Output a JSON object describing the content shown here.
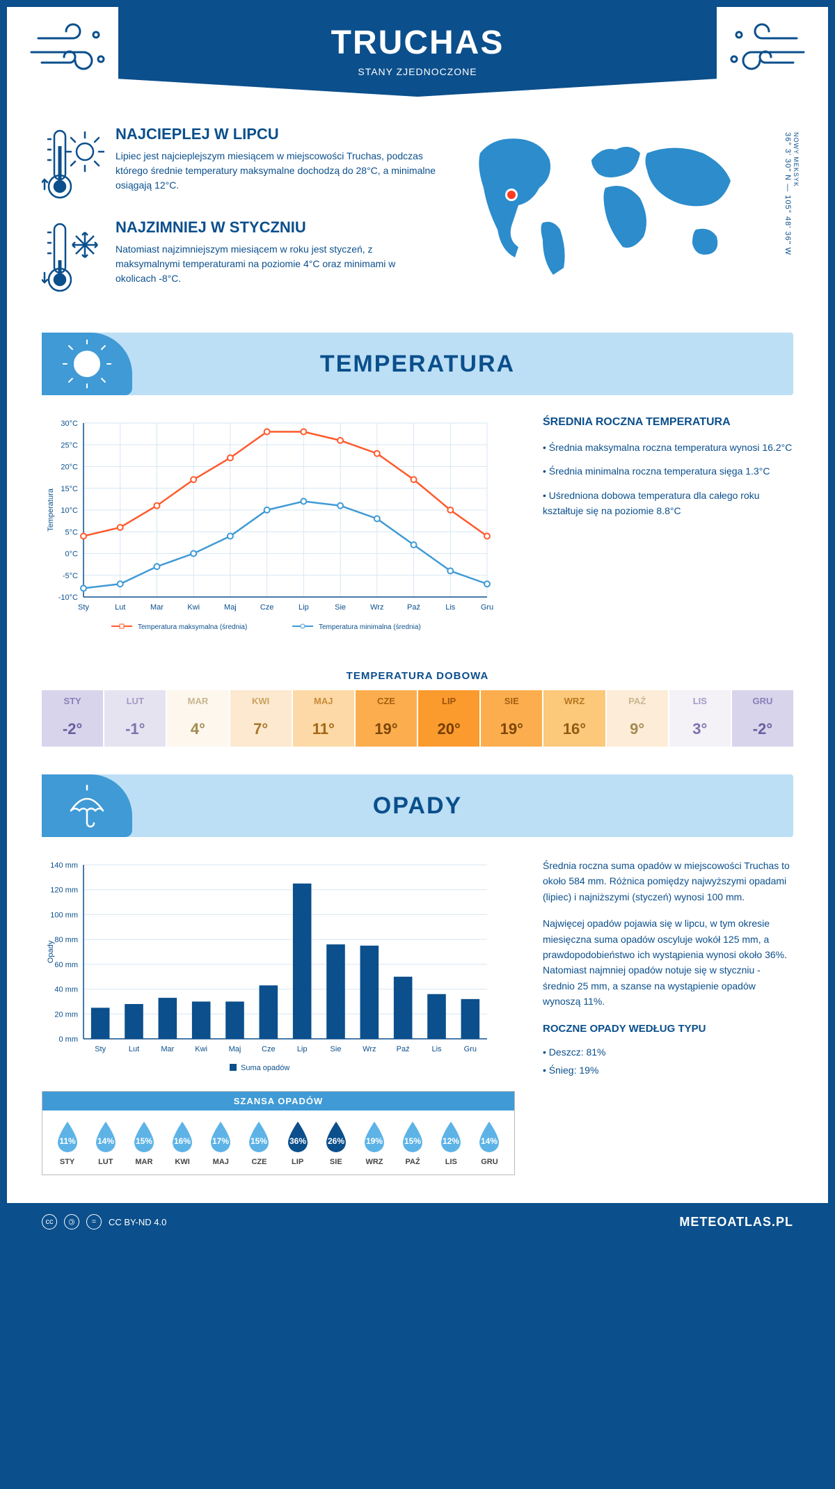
{
  "header": {
    "title": "TRUCHAS",
    "subtitle": "STANY ZJEDNOCZONE"
  },
  "coords": {
    "line": "36° 3' 30\" N — 105° 48' 36\" W",
    "region": "NOWY MEKSYK"
  },
  "intro": {
    "hot": {
      "title": "NAJCIEPLEJ W LIPCU",
      "text": "Lipiec jest najcieplejszym miesiącem w miejscowości Truchas, podczas którego średnie temperatury maksymalne dochodzą do 28°C, a minimalne osiągają 12°C."
    },
    "cold": {
      "title": "NAJZIMNIEJ W STYCZNIU",
      "text": "Natomiast najzimniejszym miesiącem w roku jest styczeń, z maksymalnymi temperaturami na poziomie 4°C oraz minimami w okolicach -8°C."
    }
  },
  "sections": {
    "temperature": "TEMPERATURA",
    "precip": "OPADY"
  },
  "months": [
    "Sty",
    "Lut",
    "Mar",
    "Kwi",
    "Maj",
    "Cze",
    "Lip",
    "Sie",
    "Wrz",
    "Paź",
    "Lis",
    "Gru"
  ],
  "months_upper": [
    "STY",
    "LUT",
    "MAR",
    "KWI",
    "MAJ",
    "CZE",
    "LIP",
    "SIE",
    "WRZ",
    "PAŹ",
    "LIS",
    "GRU"
  ],
  "temp_chart": {
    "ylabel": "Temperatura",
    "ymin": -10,
    "ymax": 30,
    "ystep": 5,
    "max_series": [
      4,
      6,
      11,
      17,
      22,
      28,
      28,
      26,
      23,
      17,
      10,
      4
    ],
    "min_series": [
      -8,
      -7,
      -3,
      0,
      4,
      10,
      12,
      11,
      8,
      2,
      -4,
      -7
    ],
    "max_color": "#ff5a2c",
    "min_color": "#3f9ad6",
    "grid_color": "#d6e7f3",
    "axis_color": "#0b4f8c",
    "legend_max": "Temperatura maksymalna (średnia)",
    "legend_min": "Temperatura minimalna (średnia)"
  },
  "temp_side": {
    "title": "ŚREDNIA ROCZNA TEMPERATURA",
    "b1": "• Średnia maksymalna roczna temperatura wynosi 16.2°C",
    "b2": "• Średnia minimalna roczna temperatura sięga 1.3°C",
    "b3": "• Uśredniona dobowa temperatura dla całego roku kształtuje się na poziomie 8.8°C"
  },
  "daily": {
    "title": "TEMPERATURA DOBOWA",
    "values": [
      "-2°",
      "-1°",
      "4°",
      "7°",
      "11°",
      "19°",
      "20°",
      "19°",
      "16°",
      "9°",
      "3°",
      "-2°"
    ],
    "bg": [
      "#d8d4ec",
      "#e6e3f1",
      "#fdf7ee",
      "#fce9d0",
      "#fcd9a6",
      "#fcae4f",
      "#fb9a2d",
      "#fcae4f",
      "#fcc87a",
      "#fdecd8",
      "#f4f1f7",
      "#d8d4ec"
    ],
    "month_fg": [
      "#8a7fb5",
      "#a49bc4",
      "#c9b68f",
      "#caa35f",
      "#c88c38",
      "#a55f0e",
      "#9c530b",
      "#a55f0e",
      "#b6761f",
      "#c9b68f",
      "#a49bc4",
      "#8a7fb5"
    ],
    "val_fg": [
      "#6a5da0",
      "#7d72ad",
      "#a38a4f",
      "#a6772b",
      "#a66614",
      "#7d4607",
      "#733e05",
      "#7d4607",
      "#945a14",
      "#a38a4f",
      "#7d72ad",
      "#6a5da0"
    ]
  },
  "precip_chart": {
    "ylabel": "Opady",
    "ymax": 140,
    "ystep": 20,
    "values": [
      25,
      28,
      33,
      30,
      30,
      43,
      125,
      76,
      75,
      50,
      36,
      32
    ],
    "bar_color": "#0b4f8c",
    "grid_color": "#d6e7f3",
    "legend": "Suma opadów"
  },
  "precip_side": {
    "p1": "Średnia roczna suma opadów w miejscowości Truchas to około 584 mm. Różnica pomiędzy najwyższymi opadami (lipiec) i najniższymi (styczeń) wynosi 100 mm.",
    "p2": "Najwięcej opadów pojawia się w lipcu, w tym okresie miesięczna suma opadów oscyluje wokół 125 mm, a prawdopodobieństwo ich wystąpienia wynosi około 36%. Natomiast najmniej opadów notuje się w styczniu - średnio 25 mm, a szanse na wystąpienie opadów wynoszą 11%."
  },
  "chance": {
    "title": "SZANSA OPADÓW",
    "values": [
      11,
      14,
      15,
      16,
      17,
      15,
      36,
      26,
      19,
      15,
      12,
      14
    ],
    "light": "#5db3e6",
    "dark": "#0b4f8c",
    "threshold": 25
  },
  "precip_type": {
    "title": "ROCZNE OPADY WEDŁUG TYPU",
    "rain": "• Deszcz: 81%",
    "snow": "• Śnieg: 19%"
  },
  "footer": {
    "license": "CC BY-ND 4.0",
    "brand": "METEOATLAS.PL"
  },
  "colors": {
    "primary": "#0b4f8c",
    "light": "#bcdff5",
    "accent": "#3f9ad6"
  }
}
